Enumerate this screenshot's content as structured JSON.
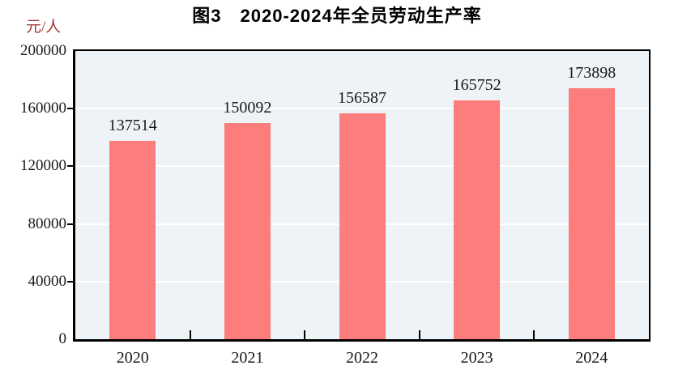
{
  "chart_data": {
    "type": "bar",
    "title": "图3　2020-2024年全员劳动生产率",
    "unit_label": "元/人",
    "categories": [
      "2020",
      "2021",
      "2022",
      "2023",
      "2024"
    ],
    "values": [
      137514,
      150092,
      156587,
      165752,
      173898
    ],
    "data_labels": [
      "137514",
      "150092",
      "156587",
      "165752",
      "173898"
    ],
    "xlabel": "",
    "ylabel": "元/人",
    "ylim": [
      0,
      200000
    ],
    "yticks": [
      0,
      40000,
      80000,
      120000,
      160000,
      200000
    ],
    "grid": "horizontal gridlines on",
    "legend": "none",
    "colors": {
      "bar": "#fd7d7d",
      "plot_background": "#edf3f7",
      "gridline": "#ffffff",
      "axis": "#000000",
      "title_text": "#000000",
      "tick_label_text": "#1a1a1a",
      "unit_label_text": "#a03c3c"
    }
  }
}
